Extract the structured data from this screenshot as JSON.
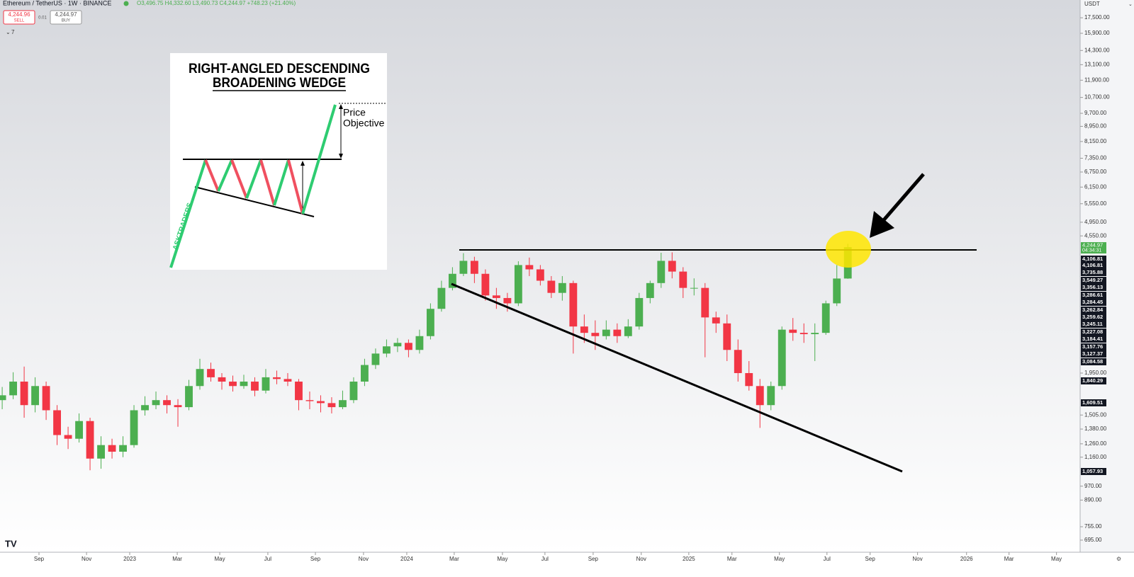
{
  "header": {
    "symbol": "Ethereum / TetherUS · 1W · BINANCE",
    "ohlc": "O3,496.75 H4,332.60 L3,490.73 C4,244.97 +748.23 (+21.40%)",
    "sell_price": "4,244.96",
    "sell": "SELL",
    "spread": "0.01",
    "buy_price": "4,244.97",
    "buy": "BUY",
    "indicator_count": "7"
  },
  "axis_panel": {
    "currency": "USDT",
    "last_price": "4,244.97",
    "countdown": "04:34:31",
    "price_labels": [
      "4,106.81",
      "4,106.81",
      "3,735.88",
      "3,549.27",
      "3,356.13",
      "3,286.61",
      "3,284.45",
      "3,262.84",
      "3,259.62",
      "3,245.11",
      "3,227.08",
      "3,184.41",
      "3,157.76",
      "3,127.37",
      "3,084.58",
      "1,840.29",
      "1,609.51",
      "1,057.93"
    ]
  },
  "inset": {
    "title_line1": "RIGHT-ANGLED DESCENDING",
    "title_line2": "BROADENING WEDGE",
    "price": "Price",
    "objective": "Objective",
    "watermark": "ASKTRADERS"
  },
  "chart_data": {
    "type": "candlestick",
    "log_scale": true,
    "up_color": "#4caf50",
    "down_color": "#f23645",
    "categories": [
      null,
      null,
      null,
      null,
      null,
      null,
      null,
      null,
      null,
      null,
      null,
      null,
      null,
      null,
      null,
      null,
      null,
      null,
      null,
      null,
      null,
      null,
      null,
      null,
      null,
      null,
      null,
      null,
      null,
      null,
      null,
      null,
      null,
      null,
      null,
      null,
      null,
      null,
      null,
      null,
      null,
      null,
      null,
      null,
      null,
      null,
      null,
      null,
      null,
      null,
      null,
      null,
      null,
      null,
      null,
      null,
      null,
      null,
      null,
      null,
      null,
      null,
      null,
      null,
      null,
      null,
      null,
      null,
      null,
      null,
      null,
      null,
      null,
      null,
      null,
      null,
      null,
      null
    ],
    "open": [
      1650,
      1700,
      1850,
      1600,
      1800,
      1550,
      1330,
      1300,
      1450,
      1150,
      1250,
      1200,
      1250,
      1550,
      1600,
      1650,
      1600,
      1580,
      1800,
      2000,
      1900,
      1850,
      1800,
      1850,
      1750,
      1900,
      1880,
      1850,
      1650,
      1640,
      1620,
      1580,
      1650,
      1850,
      2050,
      2200,
      2300,
      2350,
      2250,
      2450,
      2900,
      3300,
      3600,
      3900,
      3600,
      3150,
      3100,
      3000,
      3800,
      3700,
      3450,
      3200,
      3400,
      2600,
      2500,
      2450,
      2550,
      2450,
      2600,
      3100,
      3400,
      3900,
      3650,
      3300,
      3300,
      2750,
      2650,
      2250,
      1950,
      1800,
      1600,
      1800,
      2550,
      2500,
      2480,
      2500,
      3000,
      3496.75
    ],
    "high": [
      1790,
      1960,
      2030,
      1900,
      1850,
      1600,
      1400,
      1520,
      1480,
      1320,
      1300,
      1320,
      1600,
      1690,
      1740,
      1700,
      1660,
      1870,
      2130,
      2080,
      1950,
      1920,
      1930,
      1900,
      2000,
      1980,
      1950,
      1880,
      1740,
      1700,
      1680,
      1750,
      1900,
      2130,
      2270,
      2400,
      2420,
      2400,
      2550,
      3000,
      3450,
      3750,
      4090,
      4000,
      3700,
      3300,
      3200,
      3890,
      3980,
      3800,
      3550,
      3550,
      3450,
      2800,
      2700,
      2700,
      2650,
      2720,
      3200,
      3450,
      4100,
      4110,
      3750,
      3500,
      3400,
      2850,
      2800,
      2400,
      2100,
      1880,
      1850,
      2600,
      2740,
      2650,
      2650,
      3050,
      3800,
      4332.6
    ],
    "low": [
      1560,
      1660,
      1480,
      1530,
      1460,
      1250,
      1220,
      1270,
      1070,
      1080,
      1150,
      1160,
      1230,
      1500,
      1560,
      1520,
      1400,
      1550,
      1760,
      1850,
      1760,
      1740,
      1770,
      1690,
      1720,
      1820,
      1800,
      1550,
      1560,
      1530,
      1520,
      1560,
      1620,
      1800,
      2000,
      2150,
      2220,
      2150,
      2200,
      2400,
      2850,
      3250,
      3550,
      3400,
      3050,
      2900,
      2850,
      2950,
      3550,
      3350,
      3100,
      3050,
      2200,
      2350,
      2250,
      2400,
      2350,
      2420,
      2550,
      3000,
      3300,
      3500,
      3100,
      3150,
      2150,
      2500,
      2100,
      1850,
      1750,
      1390,
      1550,
      1760,
      2380,
      2350,
      2100,
      2470,
      2950,
      3490.73
    ],
    "close": [
      1700,
      1850,
      1600,
      1800,
      1550,
      1330,
      1300,
      1450,
      1150,
      1250,
      1200,
      1250,
      1550,
      1600,
      1650,
      1600,
      1580,
      1800,
      2000,
      1900,
      1850,
      1800,
      1850,
      1750,
      1900,
      1880,
      1850,
      1650,
      1640,
      1620,
      1580,
      1650,
      1850,
      2050,
      2200,
      2300,
      2350,
      2250,
      2450,
      2900,
      3300,
      3600,
      3900,
      3600,
      3150,
      3100,
      3000,
      3800,
      3700,
      3450,
      3200,
      3400,
      2600,
      2500,
      2450,
      2550,
      2450,
      2600,
      3100,
      3400,
      3900,
      3650,
      3300,
      3300,
      2750,
      2650,
      2250,
      1950,
      1800,
      1600,
      1800,
      2550,
      2500,
      2480,
      2500,
      3000,
      3496.75,
      4244.97
    ],
    "ylim": [
      645,
      19530
    ],
    "yticks": [
      {
        "value": 17500,
        "label": "17,500.00"
      },
      {
        "value": 15900,
        "label": "15,900.00"
      },
      {
        "value": 14300,
        "label": "14,300.00"
      },
      {
        "value": 13100,
        "label": "13,100.00"
      },
      {
        "value": 11900,
        "label": "11,900.00"
      },
      {
        "value": 10700,
        "label": "10,700.00"
      },
      {
        "value": 9700,
        "label": "9,700.00"
      },
      {
        "value": 8950,
        "label": "8,950.00"
      },
      {
        "value": 8150,
        "label": "8,150.00"
      },
      {
        "value": 7350,
        "label": "7,350.00"
      },
      {
        "value": 6750,
        "label": "6,750.00"
      },
      {
        "value": 6150,
        "label": "6,150.00"
      },
      {
        "value": 5550,
        "label": "5,550.00"
      },
      {
        "value": 4950,
        "label": "4,950.00"
      },
      {
        "value": 4550,
        "label": "4,550.00"
      },
      {
        "value": 1950,
        "label": "1,950.00"
      },
      {
        "value": 1505,
        "label": "1,505.00"
      },
      {
        "value": 1380,
        "label": "1,380.00"
      },
      {
        "value": 1260,
        "label": "1,260.00"
      },
      {
        "value": 1160,
        "label": "1,160.00"
      },
      {
        "value": 970,
        "label": "970.00"
      },
      {
        "value": 890,
        "label": "890.00"
      },
      {
        "value": 755,
        "label": "755.00"
      },
      {
        "value": 695,
        "label": "695.00"
      }
    ],
    "xlim": [
      -0.2,
      100.8
    ],
    "xticks": [
      {
        "value": 3.35,
        "label": "Sep"
      },
      {
        "value": 7.68,
        "label": "Nov"
      },
      {
        "value": 11.61,
        "label": "2023"
      },
      {
        "value": 15.94,
        "label": "Mar"
      },
      {
        "value": 19.81,
        "label": "May"
      },
      {
        "value": 24.19,
        "label": "Jul"
      },
      {
        "value": 28.52,
        "label": "Sep"
      },
      {
        "value": 32.9,
        "label": "Nov"
      },
      {
        "value": 36.84,
        "label": "2024"
      },
      {
        "value": 41.16,
        "label": "Mar"
      },
      {
        "value": 45.55,
        "label": "May"
      },
      {
        "value": 49.42,
        "label": "Jul"
      },
      {
        "value": 53.81,
        "label": "Sep"
      },
      {
        "value": 58.19,
        "label": "Nov"
      },
      {
        "value": 62.52,
        "label": "2025"
      },
      {
        "value": 66.45,
        "label": "Mar"
      },
      {
        "value": 70.77,
        "label": "May"
      },
      {
        "value": 75.1,
        "label": "Jul"
      },
      {
        "value": 79.03,
        "label": "Sep"
      },
      {
        "value": 83.35,
        "label": "Nov"
      },
      {
        "value": 87.81,
        "label": "2026"
      },
      {
        "value": 91.68,
        "label": "Mar"
      },
      {
        "value": 96,
        "label": "May"
      }
    ]
  }
}
